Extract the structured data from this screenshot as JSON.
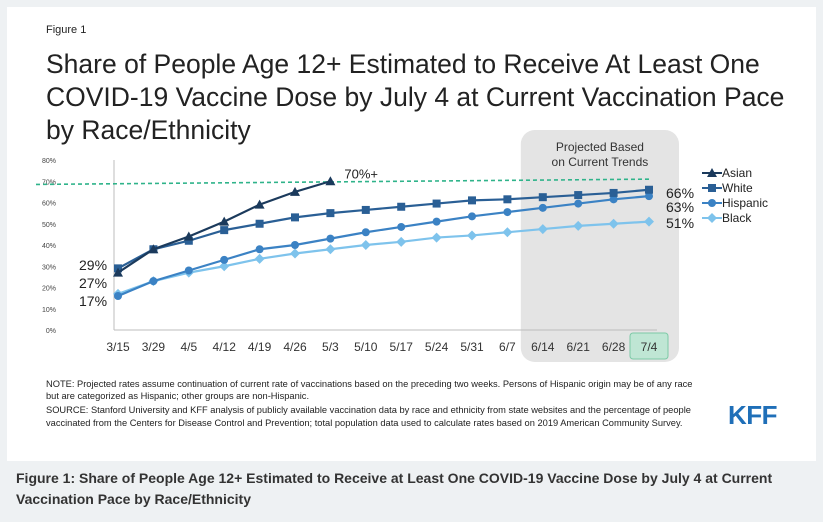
{
  "figure_label": "Figure 1",
  "title": "Share of People Age 12+ Estimated to Receive At Least One COVID-19 Vaccine Dose by July 4 at Current Vaccination Pace by Race/Ethnicity",
  "projected_label": "Projected Based on Current Trends",
  "target_label": "70%+",
  "note": "NOTE: Projected rates assume continuation of current rate of vaccinations based on the preceding two weeks. Persons of Hispanic origin may be of any race but are categorized as Hispanic; other groups are non-Hispanic.",
  "source": "SOURCE: Stanford University and KFF analysis of publicly available vaccination data by race and ethnicity from state websites and the percentage of people vaccinated from the Centers for Disease Control and Prevention; total population data used to calculate rates based on 2019 American Community Survey.",
  "logo": "KFF",
  "caption": "Figure 1: Share of People Age 12+ Estimated to Receive at Least One COVID-19 Vaccine Dose by July 4 at Current Vaccination Pace by Race/Ethnicity",
  "colors": {
    "asian": "#1b3a5c",
    "white": "#2a5f95",
    "hispanic": "#3b82c4",
    "black": "#7ec3ec",
    "target_line": "#2fb38a",
    "projection_box": "#e4e4e4",
    "highlight_box": "#bfe6d4"
  },
  "chart_data": {
    "type": "line",
    "categories": [
      "3/15",
      "3/29",
      "4/5",
      "4/12",
      "4/19",
      "4/26",
      "5/3",
      "5/10",
      "5/17",
      "5/24",
      "5/31",
      "6/7",
      "6/14",
      "6/21",
      "6/28",
      "7/4"
    ],
    "ylim": [
      0,
      80
    ],
    "yticks": [
      "0%",
      "10%",
      "20%",
      "30%",
      "40%",
      "50%",
      "60%",
      "70%",
      "80%"
    ],
    "target": 70,
    "projection_start": "6/14",
    "highlight_category": "7/4",
    "legend_position": "right",
    "series": [
      {
        "name": "Asian",
        "key": "asian",
        "marker": "triangle",
        "values": [
          27,
          38,
          44,
          51,
          59,
          65,
          70,
          null,
          null,
          null,
          null,
          null,
          null,
          null,
          null,
          null
        ]
      },
      {
        "name": "White",
        "key": "white",
        "marker": "square",
        "values": [
          29,
          38,
          42,
          47,
          50,
          53,
          55,
          56.5,
          58,
          59.5,
          61,
          61.5,
          62.5,
          63.5,
          64.5,
          66
        ]
      },
      {
        "name": "Hispanic",
        "key": "hispanic",
        "marker": "circle",
        "values": [
          16,
          23,
          28,
          33,
          38,
          40,
          43,
          46,
          48.5,
          51,
          53.5,
          55.5,
          57.5,
          59.5,
          61.5,
          63
        ]
      },
      {
        "name": "Black",
        "key": "black",
        "marker": "diamond",
        "values": [
          17,
          23,
          27,
          30,
          33.5,
          36,
          38,
          40,
          41.5,
          43.5,
          44.5,
          46,
          47.5,
          49,
          50,
          51
        ]
      }
    ],
    "start_labels": [
      {
        "series": "White",
        "text": "29%"
      },
      {
        "series": "Asian",
        "text": "27%"
      },
      {
        "series": "Black",
        "text": "17%"
      }
    ],
    "end_labels": [
      {
        "series": "White",
        "text": "66%"
      },
      {
        "series": "Hispanic",
        "text": "63%"
      },
      {
        "series": "Black",
        "text": "51%"
      }
    ]
  }
}
